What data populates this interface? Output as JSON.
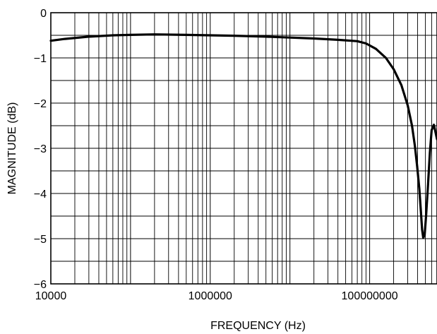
{
  "chart_data": {
    "type": "line",
    "xlabel": "FREQUENCY (Hz)",
    "ylabel": "MAGNITUDE (dB)",
    "x_scale": "log",
    "xlim": [
      10000,
      700000000
    ],
    "ylim": [
      -6,
      0
    ],
    "x_ticks": [
      10000,
      1000000,
      100000000
    ],
    "x_tick_labels": [
      "10000",
      "1000000",
      "100000000"
    ],
    "y_ticks": [
      0,
      -1,
      -2,
      -3,
      -4,
      -5,
      -6
    ],
    "y_tick_labels": [
      "0",
      "−1",
      "−2",
      "−3",
      "−4",
      "−5",
      "−6"
    ],
    "grid": true,
    "minor_y_grid_step": 0.5,
    "series": [
      {
        "color": "#000000",
        "x": [
          10000,
          15000,
          30000,
          60000,
          100000,
          200000,
          500000,
          1000000,
          2000000,
          5000000,
          10000000,
          20000000,
          40000000,
          70000000,
          90000000,
          120000000,
          160000000,
          200000000,
          250000000,
          300000000,
          340000000,
          370000000,
          395000000,
          420000000,
          440000000,
          455000000,
          470000000,
          490000000,
          510000000,
          540000000,
          570000000,
          600000000,
          640000000,
          700000000
        ],
        "y": [
          -0.62,
          -0.58,
          -0.53,
          -0.5,
          -0.49,
          -0.48,
          -0.49,
          -0.5,
          -0.51,
          -0.53,
          -0.55,
          -0.57,
          -0.6,
          -0.63,
          -0.68,
          -0.8,
          -1.0,
          -1.25,
          -1.6,
          -2.05,
          -2.5,
          -2.95,
          -3.4,
          -3.9,
          -4.4,
          -4.8,
          -4.98,
          -4.92,
          -4.5,
          -3.8,
          -3.1,
          -2.6,
          -2.48,
          -2.8
        ]
      }
    ]
  }
}
